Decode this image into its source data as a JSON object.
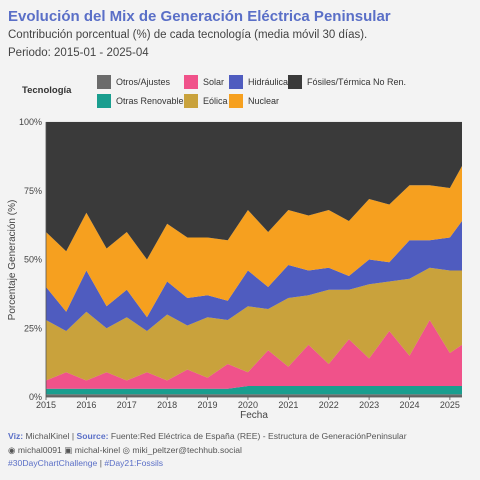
{
  "header": {
    "title": "Evolución del Mix de Generación Eléctrica Peninsular",
    "subtitle": "Contribución porcentual (%) de cada tecnología (media móvil 30 días).",
    "period": "Periodo: 2015-01 - 2025-04"
  },
  "legend": {
    "title": "Tecnología",
    "items": [
      {
        "name": "Otros/Ajustes",
        "color": "#6b6b6b"
      },
      {
        "name": "Solar",
        "color": "#f0528a"
      },
      {
        "name": "Hidráulica",
        "color": "#4f5cbf"
      },
      {
        "name": "Fósiles/Térmica No Ren.",
        "color": "#3a3a3a"
      },
      {
        "name": "Otras Renovables",
        "color": "#1a9e8f"
      },
      {
        "name": "Eólica",
        "color": "#c9a23c"
      },
      {
        "name": "Nuclear",
        "color": "#f6a01f"
      }
    ]
  },
  "chart_data": {
    "type": "area",
    "stacked": true,
    "xlabel": "Fecha",
    "ylabel": "Porcentaje Generación (%)",
    "x": [
      2015.0,
      2015.5,
      2016.0,
      2016.5,
      2017.0,
      2017.5,
      2018.0,
      2018.5,
      2019.0,
      2019.5,
      2020.0,
      2020.5,
      2021.0,
      2021.5,
      2022.0,
      2022.5,
      2023.0,
      2023.5,
      2024.0,
      2024.5,
      2025.0,
      2025.3
    ],
    "xlim": [
      2015.0,
      2025.3
    ],
    "ylim": [
      0,
      100
    ],
    "yticks": [
      "0%",
      "25%",
      "50%",
      "75%",
      "100%"
    ],
    "xticks": [
      "2015",
      "2016",
      "2017",
      "2018",
      "2019",
      "2020",
      "2021",
      "2022",
      "2023",
      "2024",
      "2025"
    ],
    "grid": true,
    "series": [
      {
        "name": "Otros/Ajustes",
        "values": [
          1,
          1,
          1,
          1,
          1,
          1,
          1,
          1,
          1,
          1,
          1,
          1,
          1,
          1,
          1,
          1,
          1,
          1,
          1,
          1,
          1,
          1
        ]
      },
      {
        "name": "Otras Renovables",
        "values": [
          2,
          2,
          2,
          2,
          2,
          2,
          2,
          2,
          2,
          2,
          3,
          3,
          3,
          3,
          3,
          3,
          3,
          3,
          3,
          3,
          3,
          3
        ]
      },
      {
        "name": "Solar",
        "values": [
          3,
          6,
          3,
          6,
          3,
          6,
          3,
          7,
          4,
          9,
          5,
          13,
          7,
          15,
          8,
          17,
          10,
          20,
          11,
          24,
          12,
          15
        ]
      },
      {
        "name": "Eólica",
        "values": [
          22,
          15,
          25,
          16,
          23,
          15,
          24,
          16,
          22,
          16,
          24,
          15,
          25,
          18,
          27,
          18,
          27,
          18,
          28,
          19,
          30,
          27
        ]
      },
      {
        "name": "Hidráulica",
        "values": [
          12,
          7,
          15,
          8,
          10,
          5,
          12,
          10,
          8,
          7,
          13,
          8,
          12,
          9,
          8,
          5,
          9,
          7,
          14,
          10,
          12,
          18
        ]
      },
      {
        "name": "Nuclear",
        "values": [
          20,
          22,
          21,
          21,
          21,
          21,
          21,
          22,
          21,
          22,
          22,
          20,
          20,
          20,
          21,
          20,
          22,
          21,
          20,
          20,
          18,
          20
        ]
      },
      {
        "name": "Fósiles/Térmica No Ren.",
        "values": [
          40,
          47,
          33,
          46,
          40,
          50,
          37,
          42,
          42,
          43,
          32,
          40,
          32,
          34,
          32,
          36,
          28,
          30,
          23,
          23,
          24,
          16
        ]
      }
    ]
  },
  "footer": {
    "viz_label": "Viz:",
    "viz_value": "MichalKinel",
    "separator": "|",
    "source_label": "Source:",
    "source_value": "Fuente:Red Eléctrica de España (REE) - Estructura de GeneraciónPeninsular",
    "github": "michal0091",
    "linkedin": "michal-kinel",
    "mastodon": "miki_peltzer@techhub.social",
    "hashtag_main": "#30DayChartChallenge",
    "hashtag_day": "#Day21:Fossils"
  }
}
